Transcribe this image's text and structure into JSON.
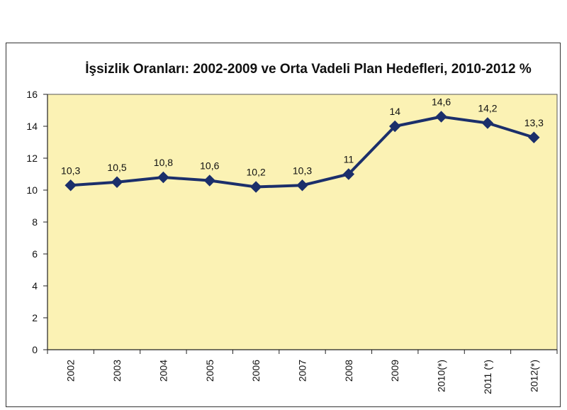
{
  "chart_data": {
    "type": "line",
    "title": "İşsizlik Oranları: 2002-2009 ve Orta Vadeli Plan Hedefleri, 2010-2012 %",
    "xlabel": "",
    "ylabel": "",
    "categories": [
      "2002",
      "2003",
      "2004",
      "2005",
      "2006",
      "2007",
      "2008",
      "2009",
      "2010(*)",
      "2011 (*)",
      "2012(*)"
    ],
    "series": [
      {
        "values": [
          10.3,
          10.5,
          10.8,
          10.6,
          10.2,
          10.3,
          11,
          14,
          14.6,
          14.2,
          13.3
        ],
        "data_labels": [
          "10,3",
          "10,5",
          "10,8",
          "10,6",
          "10,2",
          "10,3",
          "11",
          "14",
          "14,6",
          "14,2",
          "13,3"
        ]
      }
    ],
    "ylim": [
      0,
      16
    ],
    "yticks": [
      "0",
      "2",
      "4",
      "6",
      "8",
      "10",
      "12",
      "14",
      "16"
    ],
    "grid": false,
    "legend": "none",
    "colors": {
      "plot_background": "#FBF2B4",
      "line": "#1B2F6B",
      "marker": "#1B2F6B"
    }
  }
}
